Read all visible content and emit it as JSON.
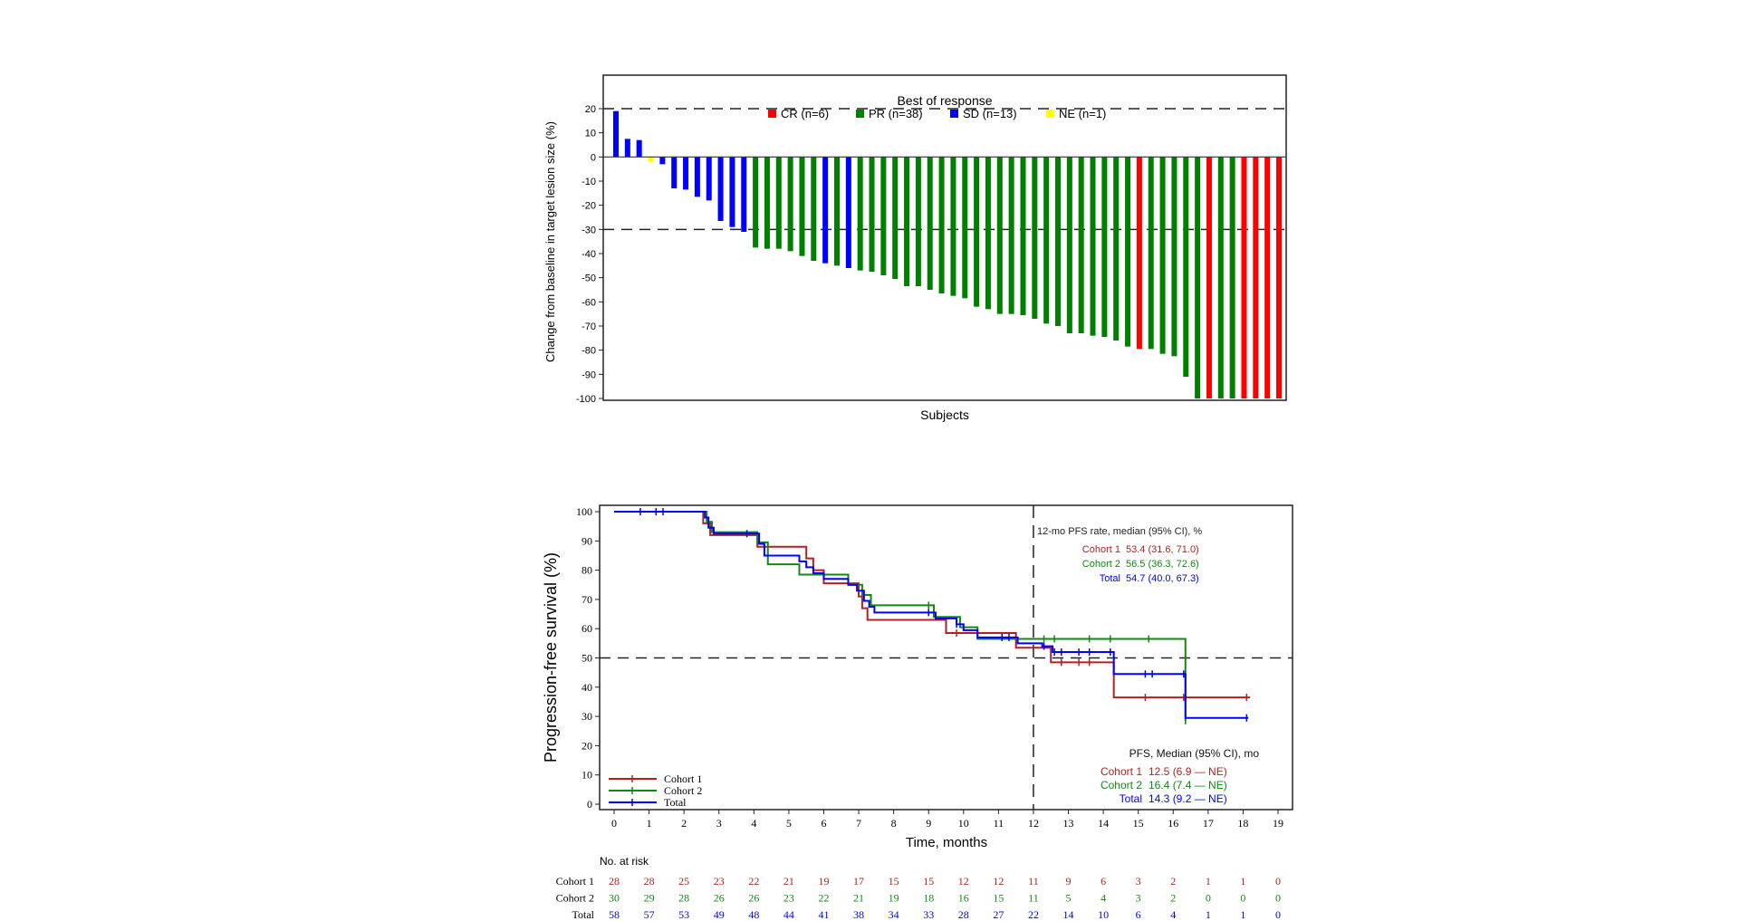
{
  "chart_data": [
    {
      "type": "bar",
      "xlabel": "Subjects",
      "ylabel": "Change from baseline in target lesion size (%)",
      "ylim": [
        -100,
        30
      ],
      "yticks": [
        20,
        10,
        0,
        -10,
        -20,
        -30,
        -40,
        -50,
        -60,
        -70,
        -80,
        -90,
        -100
      ],
      "reference_lines": [
        20,
        -30
      ],
      "legend": {
        "title": "Best of response",
        "placement": "top-center",
        "entries": [
          {
            "key": "CR",
            "label": "CR (n=6)",
            "color": "#ff0000"
          },
          {
            "key": "PR",
            "label": "PR (n=38)",
            "color": "#008000"
          },
          {
            "key": "SD",
            "label": "SD (n=13)",
            "color": "#0000ff"
          },
          {
            "key": "NE",
            "label": "NE (n=1)",
            "color": "#ffff00"
          }
        ]
      },
      "bars": [
        {
          "r": "SD",
          "v": 19
        },
        {
          "r": "SD",
          "v": 7.5
        },
        {
          "r": "SD",
          "v": 7
        },
        {
          "r": "NE",
          "v": -2
        },
        {
          "r": "SD",
          "v": -3
        },
        {
          "r": "SD",
          "v": -13
        },
        {
          "r": "SD",
          "v": -13.5
        },
        {
          "r": "SD",
          "v": -16.5
        },
        {
          "r": "SD",
          "v": -18
        },
        {
          "r": "SD",
          "v": -26.5
        },
        {
          "r": "SD",
          "v": -29
        },
        {
          "r": "SD",
          "v": -31
        },
        {
          "r": "PR",
          "v": -37.5
        },
        {
          "r": "PR",
          "v": -38
        },
        {
          "r": "PR",
          "v": -38
        },
        {
          "r": "PR",
          "v": -39
        },
        {
          "r": "PR",
          "v": -41
        },
        {
          "r": "PR",
          "v": -43
        },
        {
          "r": "SD",
          "v": -44
        },
        {
          "r": "PR",
          "v": -45
        },
        {
          "r": "SD",
          "v": -46
        },
        {
          "r": "PR",
          "v": -47
        },
        {
          "r": "PR",
          "v": -47.5
        },
        {
          "r": "PR",
          "v": -49
        },
        {
          "r": "PR",
          "v": -50.5
        },
        {
          "r": "PR",
          "v": -53.5
        },
        {
          "r": "PR",
          "v": -53.5
        },
        {
          "r": "PR",
          "v": -55
        },
        {
          "r": "PR",
          "v": -56.5
        },
        {
          "r": "PR",
          "v": -57.5
        },
        {
          "r": "PR",
          "v": -58.5
        },
        {
          "r": "PR",
          "v": -62
        },
        {
          "r": "PR",
          "v": -63
        },
        {
          "r": "PR",
          "v": -65
        },
        {
          "r": "PR",
          "v": -65
        },
        {
          "r": "PR",
          "v": -65.5
        },
        {
          "r": "PR",
          "v": -67
        },
        {
          "r": "PR",
          "v": -69
        },
        {
          "r": "PR",
          "v": -70
        },
        {
          "r": "PR",
          "v": -73
        },
        {
          "r": "PR",
          "v": -73
        },
        {
          "r": "PR",
          "v": -74
        },
        {
          "r": "PR",
          "v": -74.5
        },
        {
          "r": "PR",
          "v": -76
        },
        {
          "r": "PR",
          "v": -78.5
        },
        {
          "r": "CR",
          "v": -79.5
        },
        {
          "r": "PR",
          "v": -79.5
        },
        {
          "r": "PR",
          "v": -81.5
        },
        {
          "r": "PR",
          "v": -82.5
        },
        {
          "r": "PR",
          "v": -91
        },
        {
          "r": "PR",
          "v": -100
        },
        {
          "r": "CR",
          "v": -100
        },
        {
          "r": "PR",
          "v": -100
        },
        {
          "r": "PR",
          "v": -100
        },
        {
          "r": "CR",
          "v": -100
        },
        {
          "r": "CR",
          "v": -100
        },
        {
          "r": "CR",
          "v": -100
        },
        {
          "r": "CR",
          "v": -100
        }
      ]
    },
    {
      "type": "line",
      "subtype": "kaplan-meier",
      "xlabel": "Time, months",
      "ylabel": "Progression-free survival (%)",
      "xlim": [
        0,
        19
      ],
      "ylim": [
        0,
        100
      ],
      "xticks": [
        0,
        1,
        2,
        3,
        4,
        5,
        6,
        7,
        8,
        9,
        10,
        11,
        12,
        13,
        14,
        15,
        16,
        17,
        18,
        19
      ],
      "yticks": [
        0,
        10,
        20,
        30,
        40,
        50,
        60,
        70,
        80,
        90,
        100
      ],
      "reference_lines": {
        "x": 12,
        "y": 50
      },
      "legend_placement": "bottom-left",
      "series": [
        {
          "name": "Cohort 1",
          "color": "#b22222",
          "steps": [
            [
              0,
              100
            ],
            [
              2.55,
              96
            ],
            [
              2.75,
              92
            ],
            [
              4.1,
              88
            ],
            [
              5.5,
              84
            ],
            [
              5.7,
              80
            ],
            [
              6.0,
              75.5
            ],
            [
              7.0,
              71
            ],
            [
              7.1,
              67
            ],
            [
              7.25,
              63
            ],
            [
              9.5,
              58.5
            ],
            [
              11.5,
              53.5
            ],
            [
              12.5,
              48.5
            ],
            [
              14.3,
              36.5
            ],
            [
              18.2,
              36.5
            ]
          ],
          "censored": [
            9.8,
            12.8,
            13.3,
            13.6,
            15.2,
            16.3,
            18.1
          ]
        },
        {
          "name": "Cohort 2",
          "color": "#108a10",
          "steps": [
            [
              0,
              100
            ],
            [
              2.65,
              96.5
            ],
            [
              2.8,
              93
            ],
            [
              4.1,
              89.5
            ],
            [
              4.4,
              82
            ],
            [
              5.3,
              78.5
            ],
            [
              6.7,
              75
            ],
            [
              7.1,
              71.5
            ],
            [
              7.35,
              68
            ],
            [
              9.15,
              64
            ],
            [
              9.9,
              60.5
            ],
            [
              10.4,
              56.5
            ],
            [
              16.35,
              28.5
            ]
          ],
          "censored": [
            9.0,
            12.3,
            12.6,
            13.6,
            14.2,
            15.3,
            16.35
          ]
        },
        {
          "name": "Total",
          "color": "#0000ff",
          "steps": [
            [
              0,
              100
            ],
            [
              2.6,
              98
            ],
            [
              2.7,
              94.5
            ],
            [
              2.85,
              92.5
            ],
            [
              4.15,
              89
            ],
            [
              4.3,
              85
            ],
            [
              5.3,
              83
            ],
            [
              5.5,
              81
            ],
            [
              5.7,
              79
            ],
            [
              6.0,
              77
            ],
            [
              6.7,
              75
            ],
            [
              6.95,
              73
            ],
            [
              7.15,
              69.5
            ],
            [
              7.3,
              67.5
            ],
            [
              7.45,
              65.5
            ],
            [
              9.2,
              63.5
            ],
            [
              9.8,
              61.5
            ],
            [
              10.0,
              59.5
            ],
            [
              10.4,
              57
            ],
            [
              11.55,
              55
            ],
            [
              12.25,
              54
            ],
            [
              12.55,
              52
            ],
            [
              14.3,
              44.5
            ],
            [
              16.35,
              29.5
            ],
            [
              18.15,
              29.5
            ]
          ],
          "censored": [
            0.75,
            1.2,
            1.4,
            3.8,
            9.0,
            9.8,
            11.1,
            11.3,
            12.3,
            12.6,
            12.8,
            13.3,
            13.6,
            14.2,
            15.2,
            15.4,
            16.3,
            18.1
          ]
        }
      ],
      "annotations": {
        "rate_title": "12-mo PFS rate, median (95% CI), %",
        "rate_rows": [
          {
            "label": "Cohort 1",
            "value": "53.4 (31.6, 71.0)"
          },
          {
            "label": "Cohort 2",
            "value": "56.5 (36.3, 72.6)"
          },
          {
            "label": "Total",
            "value": "54.7 (40.0, 67.3)"
          }
        ],
        "median_title": "PFS,  Median (95% CI), mo",
        "median_rows": [
          {
            "label": "Cohort 1",
            "value": "12.5 (6.9 — NE)"
          },
          {
            "label": "Cohort 2",
            "value": "16.4 (7.4 — NE)"
          },
          {
            "label": "Total",
            "value": "14.3 (9.2 — NE)"
          }
        ]
      },
      "risk_table": {
        "title": "No. at risk",
        "rows": [
          {
            "label": "Cohort 1",
            "values": [
              28,
              28,
              25,
              23,
              22,
              21,
              19,
              17,
              15,
              15,
              12,
              12,
              11,
              9,
              6,
              3,
              2,
              1,
              1,
              0
            ]
          },
          {
            "label": "Cohort 2",
            "values": [
              30,
              29,
              28,
              26,
              26,
              23,
              22,
              21,
              19,
              18,
              16,
              15,
              11,
              5,
              4,
              3,
              2,
              0,
              0,
              0
            ]
          },
          {
            "label": "Total",
            "values": [
              58,
              57,
              53,
              49,
              48,
              44,
              41,
              38,
              34,
              33,
              28,
              27,
              22,
              14,
              10,
              6,
              4,
              1,
              1,
              0
            ]
          }
        ]
      }
    }
  ]
}
